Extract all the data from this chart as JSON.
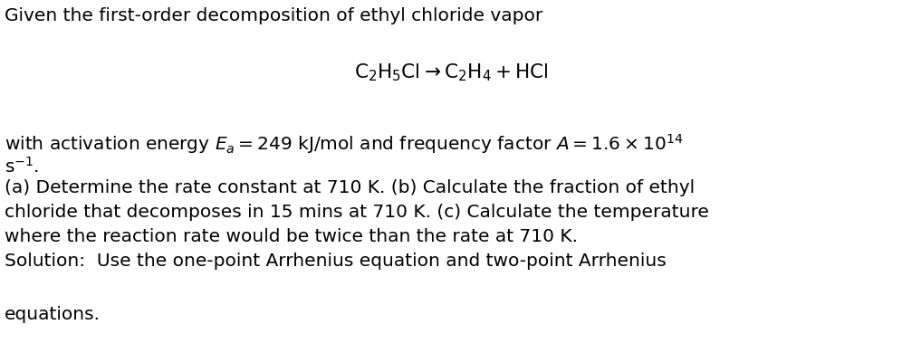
{
  "background_color": "#ffffff",
  "text_color": "#000000",
  "figsize": [
    9.96,
    3.9
  ],
  "dpi": 100,
  "line1": "Given the first-order decomposition of ethyl chloride vapor",
  "line2_latex": "$\\mathrm{C_2H_5Cl} \\rightarrow \\mathrm{C_2H_4} + \\mathrm{HCl}$",
  "line3_part1": "with activation energy $E_a = 249$ kJ/mol and frequency factor $A = 1.6\\times10^{14}$",
  "line3_part2": "s$^{-1}$.",
  "line4": "(a) Determine the rate constant at 710 K. (b) Calculate the fraction of ethyl",
  "line5": "chloride that decomposes in 15 mins at 710 K. (c) Calculate the temperature",
  "line6": "where the reaction rate would be twice than the rate at 710 K.",
  "line7": "Solution:  Use the one-point Arrhenius equation and two-point Arrhenius",
  "line8": "equations.",
  "fontsize": 14.5,
  "eq_fontsize": 15.5
}
